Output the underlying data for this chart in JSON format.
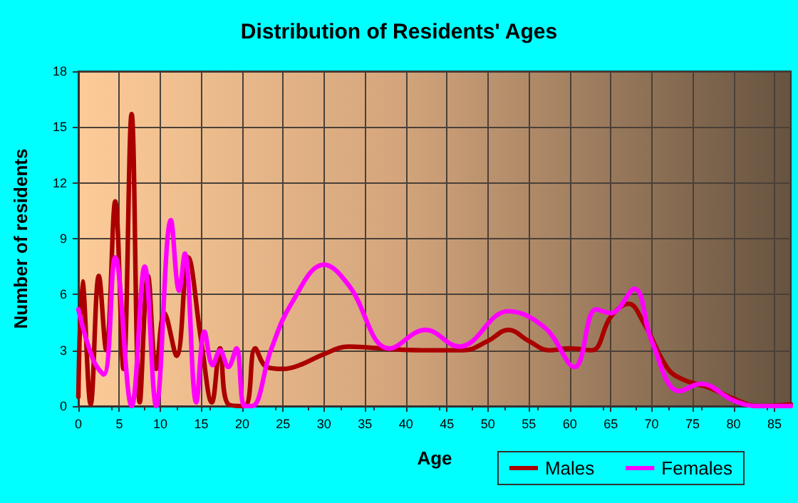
{
  "chart_data": {
    "type": "line",
    "title": "Distribution of Residents' Ages",
    "xlabel": "Age",
    "ylabel": "Number of residents",
    "xlim": [
      0,
      87
    ],
    "xticks": [
      0,
      5,
      10,
      15,
      20,
      25,
      30,
      35,
      40,
      45,
      50,
      55,
      60,
      65,
      70,
      75,
      80,
      85
    ],
    "ylim": [
      0,
      18
    ],
    "yticks": [
      0,
      3,
      6,
      9,
      12,
      15,
      18
    ],
    "grid": true,
    "legend": "bottom right",
    "marker": "none",
    "line_style": "solid",
    "series": [
      {
        "name": "Males",
        "color": "#aa0000",
        "x": [
          0,
          0.5,
          1.5,
          2.5,
          3.4,
          4.5,
          5.5,
          6.5,
          7.5,
          8.5,
          9.5,
          10.5,
          12,
          13.4,
          15,
          16.3,
          17.3,
          18.3,
          20.3,
          21.6,
          23,
          25,
          27,
          30,
          33,
          37,
          42,
          47,
          50,
          52.5,
          55,
          57.5,
          60,
          62.7,
          65,
          67.2,
          69,
          72,
          74,
          77,
          80,
          83,
          87
        ],
        "values": [
          0.5,
          6.7,
          0.1,
          7,
          3,
          11,
          2,
          15.7,
          0.2,
          7,
          2,
          5,
          2.7,
          8,
          3.5,
          0.2,
          3.1,
          0.1,
          0,
          3.1,
          2.1,
          2,
          2.2,
          2.8,
          3.2,
          3.1,
          3,
          3,
          3.5,
          4.1,
          3.5,
          3,
          3.1,
          3,
          4.8,
          5.5,
          4.5,
          2,
          1.4,
          1,
          0.4,
          0,
          0.1
        ]
      },
      {
        "name": "Females",
        "color": "#ff00ff",
        "x": [
          0,
          1.8,
          3.1,
          4.5,
          6.5,
          8.1,
          9.5,
          11.3,
          12.3,
          13,
          14.4,
          15.4,
          16.4,
          17.3,
          18.3,
          19.3,
          20.3,
          21.2,
          23.5,
          26,
          30,
          33,
          38,
          42.4,
          46.5,
          52.5,
          57,
          60.6,
          63.2,
          65,
          67.9,
          70,
          73.4,
          76,
          80,
          83,
          87
        ],
        "values": [
          5.2,
          2.5,
          1.7,
          8,
          0,
          7.5,
          0,
          10,
          6.2,
          8.2,
          0.2,
          4,
          2.2,
          3,
          2.1,
          3.1,
          0,
          0,
          3,
          5.5,
          7.6,
          6.5,
          3.1,
          4.1,
          3.2,
          5.1,
          4.2,
          2.1,
          5.2,
          5,
          6.3,
          3.5,
          0.8,
          1.2,
          0.3,
          0,
          0
        ]
      }
    ]
  }
}
